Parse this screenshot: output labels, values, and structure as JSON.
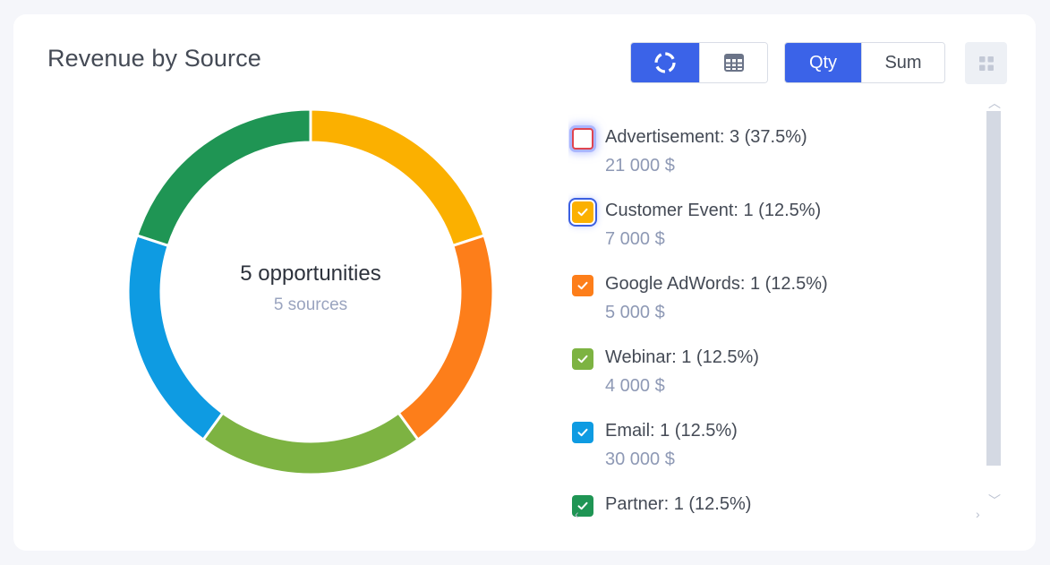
{
  "header": {
    "title": "Revenue by Source"
  },
  "toolbar": {
    "view_modes": [
      {
        "name": "donut-view",
        "icon": "donut-chart-icon",
        "active": true
      },
      {
        "name": "table-view",
        "icon": "table-icon",
        "active": false
      }
    ],
    "mode_qty_label": "Qty",
    "mode_sum_label": "Sum",
    "active_mode": "Qty",
    "more_icon": "grid-dots-icon"
  },
  "center": {
    "main": "5 opportunities",
    "sub": "5 sources"
  },
  "chart_data": {
    "type": "pie",
    "style": "donut",
    "series": [
      {
        "name": "Advertisement",
        "count": 3,
        "percent": 37.5,
        "value_label": "21 000 $",
        "checked": false,
        "color": "#e0454f"
      },
      {
        "name": "Customer Event",
        "count": 1,
        "percent": 12.5,
        "value_label": "7 000 $",
        "checked": true,
        "color": "#fbb000"
      },
      {
        "name": "Google AdWords",
        "count": 1,
        "percent": 12.5,
        "value_label": "5 000 $",
        "checked": true,
        "color": "#fd7e1a"
      },
      {
        "name": "Webinar",
        "count": 1,
        "percent": 12.5,
        "value_label": "4 000 $",
        "checked": true,
        "color": "#7db342"
      },
      {
        "name": "Email",
        "count": 1,
        "percent": 12.5,
        "value_label": "30 000 $",
        "checked": true,
        "color": "#0e9be2"
      },
      {
        "name": "Partner",
        "count": 1,
        "percent": 12.5,
        "value_label": "",
        "checked": true,
        "color": "#1f9554"
      }
    ]
  },
  "legend_labels": [
    "Advertisement: 3 (37.5%)",
    "Customer Event: 1 (12.5%)",
    "Google AdWords: 1 (12.5%)",
    "Webinar: 1 (12.5%)",
    "Email: 1 (12.5%)",
    "Partner: 1 (12.5%)"
  ],
  "colors": {
    "accent": "#3b63e8",
    "text": "#444a55",
    "muted": "#8e99b5"
  }
}
